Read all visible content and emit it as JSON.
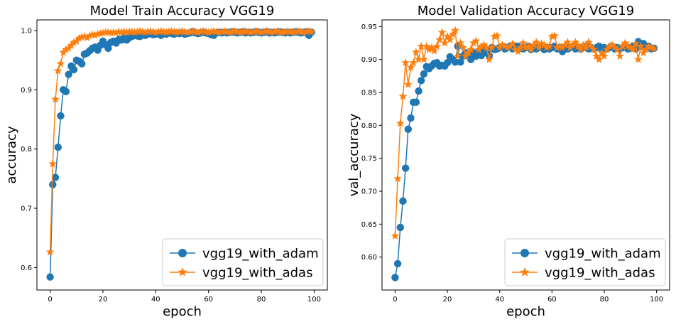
{
  "chart_data": [
    {
      "type": "line",
      "title": "Model Train Accuracy VGG19",
      "xlabel": "epoch",
      "ylabel": "accuracy",
      "xlim": [
        -5,
        105
      ],
      "ylim": [
        0.562,
        1.018
      ],
      "xticks": [
        0,
        20,
        40,
        60,
        80,
        100
      ],
      "yticks": [
        0.6,
        0.7,
        0.8,
        0.9,
        1.0
      ],
      "ytick_labels": [
        "0.6",
        "0.7",
        "0.8",
        "0.9",
        "1.0"
      ],
      "legend_position": "lower-right",
      "grid": false,
      "series": [
        {
          "name": "vgg19_with_adam",
          "color": "#1f77b4",
          "marker": "circle",
          "values": [
            0.584,
            0.74,
            0.752,
            0.803,
            0.856,
            0.9,
            0.897,
            0.926,
            0.94,
            0.934,
            0.95,
            0.948,
            0.944,
            0.96,
            0.962,
            0.966,
            0.97,
            0.972,
            0.967,
            0.975,
            0.982,
            0.976,
            0.97,
            0.98,
            0.982,
            0.979,
            0.985,
            0.984,
            0.988,
            0.984,
            0.988,
            0.99,
            0.992,
            0.991,
            0.99,
            0.993,
            0.992,
            0.994,
            0.995,
            0.993,
            0.994,
            0.995,
            0.992,
            0.995,
            0.994,
            0.996,
            0.995,
            0.994,
            0.996,
            0.995,
            0.996,
            0.994,
            0.995,
            0.996,
            0.998,
            0.996,
            0.995,
            0.996,
            0.997,
            0.996,
            0.995,
            0.993,
            0.992,
            0.996,
            0.997,
            0.996,
            0.997,
            0.996,
            0.997,
            0.998,
            0.997,
            0.996,
            0.997,
            0.998,
            0.996,
            0.997,
            0.996,
            0.997,
            0.998,
            0.997,
            0.996,
            0.997,
            0.998,
            0.996,
            0.997,
            0.996,
            0.997,
            0.998,
            0.997,
            0.996,
            0.997,
            0.996,
            0.997,
            0.998,
            0.997,
            0.996,
            0.997,
            0.998,
            0.992,
            0.997
          ]
        },
        {
          "name": "vgg19_with_adas",
          "color": "#ff7f0e",
          "marker": "star",
          "values": [
            0.626,
            0.775,
            0.884,
            0.932,
            0.944,
            0.963,
            0.968,
            0.97,
            0.975,
            0.98,
            0.982,
            0.987,
            0.989,
            0.99,
            0.988,
            0.991,
            0.993,
            0.992,
            0.994,
            0.995,
            0.996,
            0.997,
            0.997,
            0.996,
            0.997,
            0.996,
            0.998,
            0.997,
            0.998,
            0.997,
            0.998,
            0.998,
            0.997,
            0.998,
            0.999,
            0.998,
            0.997,
            0.998,
            0.999,
            0.998,
            0.997,
            0.998,
            0.999,
            0.998,
            0.997,
            0.998,
            0.999,
            0.998,
            0.997,
            0.998,
            0.999,
            0.998,
            0.997,
            0.998,
            0.999,
            0.998,
            0.997,
            0.998,
            0.999,
            0.998,
            0.997,
            0.998,
            0.999,
            0.998,
            0.997,
            0.998,
            0.999,
            0.998,
            0.997,
            0.998,
            0.999,
            0.998,
            0.997,
            0.998,
            0.999,
            0.998,
            0.997,
            0.998,
            0.999,
            0.998,
            0.997,
            0.998,
            0.999,
            0.998,
            0.997,
            0.998,
            0.999,
            0.998,
            0.997,
            0.998,
            0.999,
            0.998,
            0.997,
            0.998,
            0.999,
            0.998,
            0.997,
            0.998,
            0.999,
            0.998
          ]
        }
      ]
    },
    {
      "type": "line",
      "title": "Model Validation Accuracy VGG19",
      "xlabel": "epoch",
      "ylabel": "val_accuracy",
      "xlim": [
        -5,
        105
      ],
      "ylim": [
        0.55,
        0.96
      ],
      "xticks": [
        0,
        20,
        40,
        60,
        80,
        100
      ],
      "yticks": [
        0.6,
        0.65,
        0.7,
        0.75,
        0.8,
        0.85,
        0.9,
        0.95
      ],
      "ytick_labels": [
        "0.60",
        "0.65",
        "0.70",
        "0.75",
        "0.80",
        "0.85",
        "0.90",
        "0.95"
      ],
      "legend_position": "lower-right",
      "grid": false,
      "series": [
        {
          "name": "vgg19_with_adam",
          "color": "#1f77b4",
          "marker": "circle",
          "values": [
            0.569,
            0.59,
            0.645,
            0.685,
            0.735,
            0.794,
            0.811,
            0.835,
            0.835,
            0.852,
            0.868,
            0.878,
            0.889,
            0.886,
            0.89,
            0.894,
            0.895,
            0.89,
            0.891,
            0.89,
            0.895,
            0.904,
            0.9,
            0.896,
            0.92,
            0.896,
            0.905,
            0.91,
            0.905,
            0.9,
            0.91,
            0.905,
            0.912,
            0.906,
            0.915,
            0.91,
            0.906,
            0.918,
            0.915,
            0.916,
            0.918,
            0.92,
            0.916,
            0.918,
            0.92,
            0.916,
            0.919,
            0.92,
            0.917,
            0.916,
            0.918,
            0.92,
            0.915,
            0.918,
            0.916,
            0.918,
            0.92,
            0.915,
            0.918,
            0.916,
            0.918,
            0.92,
            0.916,
            0.918,
            0.912,
            0.918,
            0.916,
            0.918,
            0.92,
            0.916,
            0.918,
            0.916,
            0.918,
            0.92,
            0.916,
            0.918,
            0.916,
            0.918,
            0.92,
            0.916,
            0.918,
            0.916,
            0.918,
            0.92,
            0.916,
            0.918,
            0.916,
            0.918,
            0.92,
            0.916,
            0.918,
            0.92,
            0.916,
            0.927,
            0.92,
            0.924,
            0.918,
            0.92,
            0.916,
            0.917
          ]
        },
        {
          "name": "vgg19_with_adas",
          "color": "#ff7f0e",
          "marker": "star",
          "values": [
            0.632,
            0.719,
            0.803,
            0.844,
            0.895,
            0.862,
            0.888,
            0.895,
            0.911,
            0.9,
            0.92,
            0.9,
            0.92,
            0.915,
            0.918,
            0.913,
            0.92,
            0.93,
            0.941,
            0.925,
            0.935,
            0.93,
            0.938,
            0.944,
            0.905,
            0.925,
            0.918,
            0.905,
            0.91,
            0.915,
            0.925,
            0.928,
            0.915,
            0.92,
            0.922,
            0.918,
            0.9,
            0.918,
            0.935,
            0.936,
            0.918,
            0.922,
            0.92,
            0.918,
            0.92,
            0.924,
            0.915,
            0.912,
            0.918,
            0.925,
            0.918,
            0.92,
            0.915,
            0.922,
            0.926,
            0.918,
            0.924,
            0.922,
            0.918,
            0.92,
            0.935,
            0.936,
            0.918,
            0.92,
            0.918,
            0.922,
            0.926,
            0.918,
            0.922,
            0.926,
            0.92,
            0.915,
            0.922,
            0.918,
            0.926,
            0.92,
            0.915,
            0.905,
            0.9,
            0.91,
            0.905,
            0.915,
            0.92,
            0.922,
            0.918,
            0.915,
            0.905,
            0.92,
            0.925,
            0.92,
            0.918,
            0.915,
            0.924,
            0.9,
            0.92,
            0.91,
            0.915,
            0.92,
            0.918,
            0.916
          ]
        }
      ]
    }
  ]
}
